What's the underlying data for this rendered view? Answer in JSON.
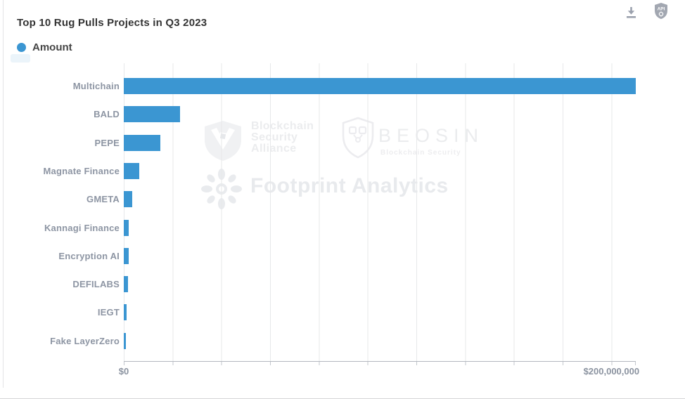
{
  "header": {
    "title": "Top 10 Rug Pulls Projects in Q3 2023",
    "toolbar": {
      "download_icon": "download-icon",
      "api_icon": "api-badge-icon",
      "api_label": "API"
    }
  },
  "legend": {
    "position": "top-left",
    "items": [
      {
        "label": "Amount",
        "color": "#3b96d2"
      }
    ]
  },
  "chart_data": {
    "type": "bar",
    "orientation": "horizontal",
    "title": "Top 10 Rug Pulls Projects in Q3 2023",
    "series_name": "Amount",
    "categories": [
      "Multichain",
      "BALD",
      "PEPE",
      "Magnate Finance",
      "GMETA",
      "Kannagi Finance",
      "Encryption AI",
      "DEFILABS",
      "IEGT",
      "Fake LayerZero"
    ],
    "values": [
      210000000,
      23000000,
      15000000,
      6400000,
      3600000,
      2100000,
      2000000,
      1600000,
      1140000,
      1000000
    ],
    "value_unit": "USD",
    "xlabel": "",
    "ylabel": "",
    "xlim": [
      0,
      210000000
    ],
    "x_ticks": [
      {
        "label": "$0",
        "value": 0
      },
      {
        "label": "$200,000,000",
        "value": 200000000
      }
    ],
    "grid": "vertical gridlines every $20,000,000",
    "legend_position": "top-left",
    "bar_color": "#3b96d2"
  },
  "watermarks": {
    "alliance": {
      "lines": [
        "Blockchain",
        "Security",
        "Alliance"
      ]
    },
    "beosin": {
      "title": "BEOSIN",
      "subtitle": "Blockchain Security"
    },
    "footprint": {
      "text": "Footprint Analytics"
    }
  },
  "colors": {
    "accent_blue": "#3b96d2",
    "title_text": "#333333",
    "category_label_text": "#8d95a3",
    "tick_label_text": "#8b93a0",
    "gridline": "#e7e8ea",
    "axis_line": "#b3b7bf",
    "toolbar_icon_gray": "#9ba1ad",
    "watermark_gray": "#ebedf0"
  }
}
